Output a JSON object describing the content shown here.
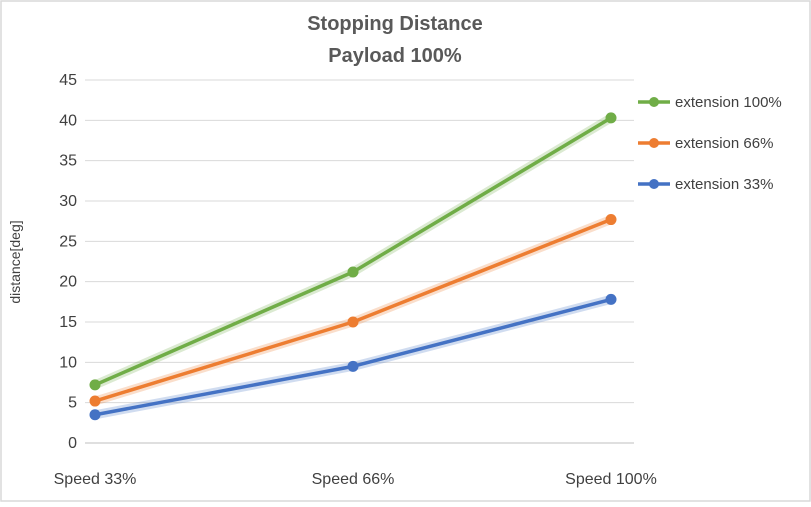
{
  "chart_data": {
    "type": "line",
    "title": "Stopping Distance",
    "subtitle": "Payload 100%",
    "ylabel": "distance[deg]",
    "categories": [
      "Speed 33%",
      "Speed 66%",
      "Speed 100%"
    ],
    "series": [
      {
        "name": "extension 100%",
        "color": "#70AD47",
        "values": [
          7.2,
          21.2,
          40.3
        ]
      },
      {
        "name": "extension 66%",
        "color": "#ED7D31",
        "values": [
          5.2,
          15.0,
          27.7
        ]
      },
      {
        "name": "extension 33%",
        "color": "#4472C4",
        "values": [
          3.5,
          9.5,
          17.8
        ]
      }
    ],
    "ylim": [
      0,
      45
    ],
    "ytick_step": 5,
    "grid": true,
    "legend_position": "right",
    "colors": {
      "gridline": "#D9D9D9",
      "axis_line": "#BFBFBF",
      "border": "#D9D9D9",
      "title_text": "#595959",
      "tick_text": "#404040"
    }
  }
}
